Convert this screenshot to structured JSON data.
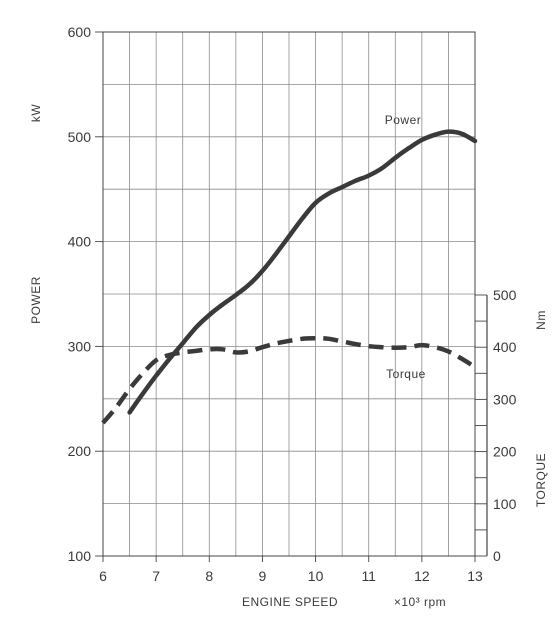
{
  "chart_data": {
    "type": "line",
    "xlabel": "ENGINE SPEED",
    "x_unit": "×10³ rpm",
    "x_ticks": [
      "6",
      "7",
      "8",
      "9",
      "10",
      "11",
      "12",
      "13"
    ],
    "xlim": [
      6,
      13
    ],
    "left_axis": {
      "label": "POWER",
      "unit": "kW",
      "ticks": [
        "100",
        "200",
        "300",
        "400",
        "500",
        "600"
      ],
      "ylim": [
        100,
        600
      ]
    },
    "right_axis": {
      "label": "TORQUE",
      "unit": "Nm",
      "ticks": [
        "0",
        "100",
        "200",
        "300",
        "400",
        "500"
      ],
      "ylim": [
        0,
        500
      ]
    },
    "grid": true,
    "series": [
      {
        "name": "Power",
        "axis": "left",
        "style": "solid",
        "color": "#3a3a3a",
        "x": [
          6.5,
          6.75,
          7.0,
          7.25,
          7.5,
          7.75,
          8.0,
          8.25,
          8.5,
          8.75,
          9.0,
          9.25,
          9.5,
          9.75,
          10.0,
          10.25,
          10.5,
          10.75,
          11.0,
          11.25,
          11.5,
          11.75,
          12.0,
          12.25,
          12.5,
          12.75,
          13.0
        ],
        "values": [
          237,
          255,
          272,
          288,
          303,
          318,
          330,
          340,
          349,
          359,
          372,
          388,
          405,
          422,
          437,
          446,
          452,
          458,
          463,
          470,
          480,
          489,
          497,
          502,
          505,
          503,
          496
        ]
      },
      {
        "name": "Torque",
        "axis": "right",
        "style": "dashed",
        "color": "#3a3a3a",
        "x": [
          6.0,
          6.25,
          6.5,
          6.75,
          7.0,
          7.25,
          7.5,
          7.75,
          8.0,
          8.25,
          8.5,
          8.75,
          9.0,
          9.25,
          9.5,
          9.75,
          10.0,
          10.25,
          10.5,
          10.75,
          11.0,
          11.25,
          11.5,
          11.75,
          12.0,
          12.25,
          12.5,
          12.75,
          13.0
        ],
        "values": [
          255,
          285,
          320,
          350,
          375,
          385,
          390,
          393,
          396,
          396,
          390,
          392,
          400,
          407,
          412,
          416,
          417,
          416,
          411,
          406,
          402,
          400,
          399,
          400,
          404,
          400,
          392,
          378,
          362
        ]
      }
    ]
  }
}
